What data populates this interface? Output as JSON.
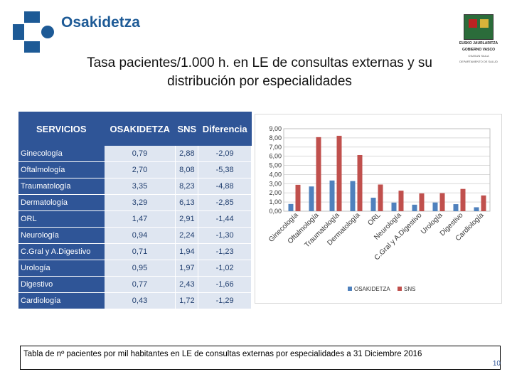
{
  "header": {
    "brand": "Osakidetza",
    "gov_line1": "EUSKO JAURLARITZA",
    "gov_line2": "GOBIERNO VASCO",
    "gov_line3": "OSASUN SAILA",
    "gov_line4": "DEPARTAMENTO DE SALUD"
  },
  "title": "Tasa pacientes/1.000 h. en LE de consultas externas y su distribución por especialidades",
  "table": {
    "headers": [
      "SERVICIOS",
      "OSAKIDETZA",
      "SNS",
      "Diferencia"
    ],
    "rows": [
      [
        "Ginecología",
        "0,79",
        "2,88",
        "-2,09"
      ],
      [
        "Oftalmología",
        "2,70",
        "8,08",
        "-5,38"
      ],
      [
        "Traumatología",
        "3,35",
        "8,23",
        "-4,88"
      ],
      [
        "Dermatología",
        "3,29",
        "6,13",
        "-2,85"
      ],
      [
        "ORL",
        "1,47",
        "2,91",
        "-1,44"
      ],
      [
        "Neurología",
        "0,94",
        "2,24",
        "-1,30"
      ],
      [
        "C.Gral y A.Digestivo",
        "0,71",
        "1,94",
        "-1,23"
      ],
      [
        "Urología",
        "0,95",
        "1,97",
        "-1,02"
      ],
      [
        "Digestivo",
        "0,77",
        "2,43",
        "-1,66"
      ],
      [
        "Cardiología",
        "0,43",
        "1,72",
        "-1,29"
      ]
    ]
  },
  "chart_data": {
    "type": "bar",
    "categories": [
      "Ginecología",
      "Oftalmología",
      "Traumatología",
      "Dermatología",
      "ORL",
      "Neurología",
      "C.Gral y A.Digestivo",
      "Urología",
      "Digestivo",
      "Cardiología"
    ],
    "series": [
      {
        "name": "OSAKIDETZA",
        "values": [
          0.79,
          2.7,
          3.35,
          3.29,
          1.47,
          0.94,
          0.71,
          0.95,
          0.77,
          0.43
        ],
        "color": "#4f81bd"
      },
      {
        "name": "SNS",
        "values": [
          2.88,
          8.08,
          8.23,
          6.13,
          2.91,
          2.24,
          1.94,
          1.97,
          2.43,
          1.72
        ],
        "color": "#c0504d"
      }
    ],
    "yticks": [
      "0,00",
      "1,00",
      "2,00",
      "3,00",
      "4,00",
      "5,00",
      "6,00",
      "7,00",
      "8,00",
      "9,00"
    ],
    "ylim": [
      0,
      9
    ],
    "grid": true,
    "legend": "bottom"
  },
  "caption": "Tabla de nº pacientes por mil habitantes en LE de consultas externas por especialidades a 31 Diciembre 2016",
  "page_number": "10"
}
